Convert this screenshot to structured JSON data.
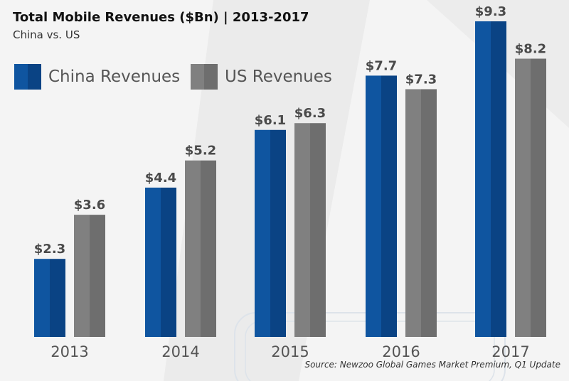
{
  "chart_data": {
    "type": "bar",
    "title": "Total Mobile Revenues ($Bn) | 2013-2017",
    "subtitle": "China vs. US",
    "categories": [
      "2013",
      "2014",
      "2015",
      "2016",
      "2017"
    ],
    "series": [
      {
        "name": "China Revenues",
        "values": [
          2.3,
          4.4,
          6.1,
          7.7,
          9.3
        ],
        "labels": [
          "$2.3",
          "$4.4",
          "$6.1",
          "$7.7",
          "$9.3"
        ],
        "color": "#0f55a0",
        "shade": "#0a4384"
      },
      {
        "name": "US Revenues",
        "values": [
          3.6,
          5.2,
          6.3,
          7.3,
          8.2
        ],
        "labels": [
          "$3.6",
          "$5.2",
          "$6.3",
          "$7.3",
          "$8.2"
        ],
        "color": "#808080",
        "shade": "#6e6e6e"
      }
    ],
    "ylim": [
      0,
      9.3
    ],
    "grid": false,
    "legend_position": "top-left",
    "source": "Source: Newzoo Global Games Market Premium, Q1 Update"
  }
}
